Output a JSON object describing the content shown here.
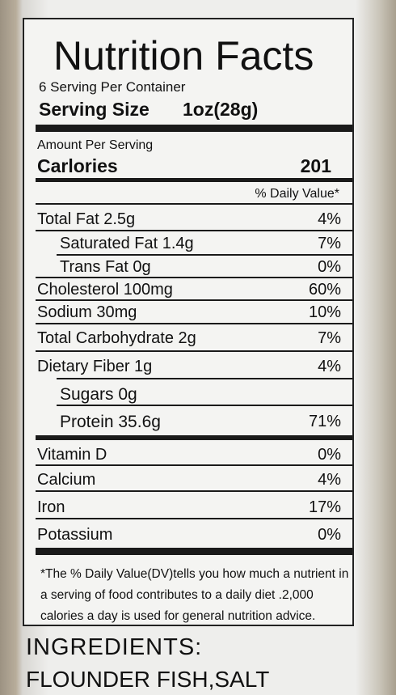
{
  "header": {
    "title": "Nutrition Facts",
    "servings": "6 Serving Per Container",
    "serving_size_label": "Serving Size",
    "serving_size": "1oz(28g)"
  },
  "calories": {
    "amount_per_serving": "Amount Per Serving",
    "label": "Carlories",
    "value": "201",
    "daily_value_header": "% Daily Value*"
  },
  "rows": [
    [
      "Total Fat 2.5g",
      "4%"
    ],
    [
      "Saturated Fat 1.4g",
      "7%"
    ],
    [
      "Trans Fat 0g",
      "0%"
    ],
    [
      "Cholesterol  100mg",
      "60%"
    ],
    [
      "Sodium  30mg",
      "10%"
    ],
    [
      "Total Carbohydrate 2g",
      "7%"
    ],
    [
      "Dietary Fiber 1g",
      "4%"
    ],
    [
      "Sugars 0g"
    ],
    [
      "Protein 35.6g",
      "71%"
    ],
    [
      "Vitamin D",
      "0%"
    ],
    [
      "Calcium",
      "4%"
    ],
    [
      "Iron",
      "17%"
    ],
    [
      "Potassium",
      "0%"
    ]
  ],
  "footnote": "*The % Daily Value(DV)tells you how much a nutrient in a serving of food contributes to a daily diet .2,000 calories a day is used for general nutrition advice.",
  "ingredients": {
    "title": "INGREDIENTS:",
    "text": "FLOUNDER FISH,SALT"
  }
}
